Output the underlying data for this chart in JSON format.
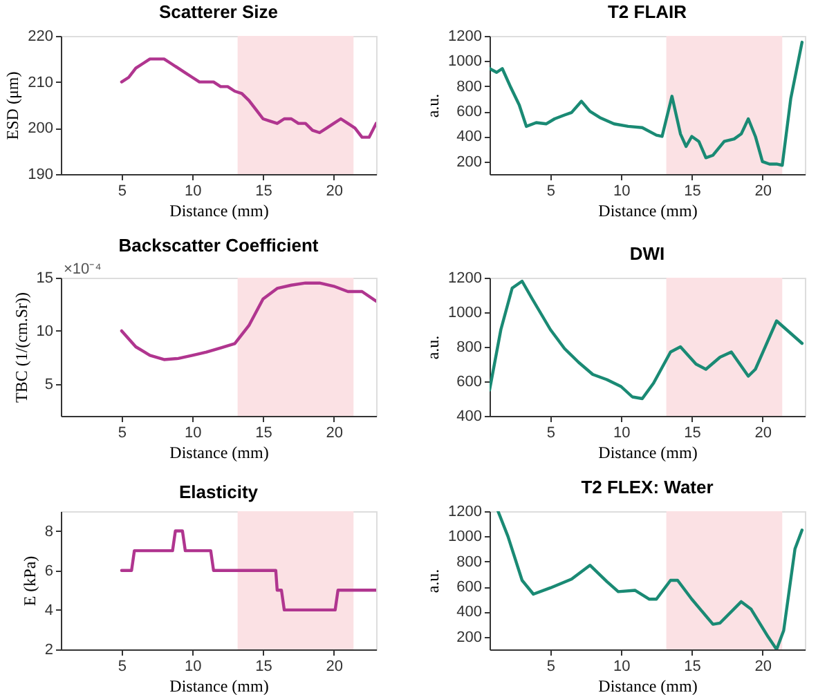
{
  "chart_data": [
    {
      "type": "line",
      "title": "Scatterer Size",
      "xlabel": "Distance (mm)",
      "ylabel": "ESD (μm)",
      "xlim": [
        0.7,
        23
      ],
      "xticks": [
        5,
        10,
        15,
        20
      ],
      "ylim": [
        190,
        220
      ],
      "yticks": [
        190,
        200,
        210,
        220
      ],
      "grid": false,
      "bands": [
        {
          "axis": "x",
          "from": 13.2,
          "to": 21.4,
          "color": "#fbe1e4"
        }
      ],
      "series": [
        {
          "color": "#b0358f",
          "x": [
            5,
            5.5,
            6,
            6.5,
            7,
            8,
            8.5,
            9,
            9.5,
            10,
            10.5,
            11.5,
            12,
            12.5,
            13,
            13.5,
            14,
            14.5,
            15,
            15.5,
            16,
            16.5,
            17,
            17.5,
            18,
            18.5,
            19,
            19.5,
            20,
            20.5,
            21,
            21.5,
            22,
            22.5,
            23
          ],
          "values": [
            210,
            211,
            213,
            214,
            215,
            215,
            214,
            213,
            212,
            211,
            210,
            210,
            209,
            209,
            208,
            207.5,
            206,
            204,
            202,
            201.5,
            201,
            202,
            202,
            201,
            201,
            199.5,
            199,
            200,
            201,
            202,
            201,
            200,
            198,
            198,
            201
          ]
        }
      ]
    },
    {
      "type": "line",
      "title": "T2 FLAIR",
      "xlabel": "Distance (mm)",
      "ylabel": "a.u.",
      "xlim": [
        0.7,
        23
      ],
      "xticks": [
        5,
        10,
        15,
        20
      ],
      "ylim": [
        100,
        1200
      ],
      "yticks": [
        200,
        400,
        600,
        800,
        1000,
        1200
      ],
      "grid": false,
      "bands": [
        {
          "axis": "x",
          "from": 13.2,
          "to": 21.4,
          "color": "#fbe1e4"
        }
      ],
      "series": [
        {
          "color": "#1a8a74",
          "x": [
            0.7,
            1.2,
            1.6,
            2.2,
            2.8,
            3.3,
            4,
            4.7,
            5.3,
            6,
            6.5,
            7.2,
            7.8,
            8.5,
            9.5,
            10.5,
            11.5,
            12.5,
            12.9,
            13.6,
            14.2,
            14.6,
            15,
            15.5,
            16,
            16.5,
            17.3,
            18,
            18.5,
            19,
            19.5,
            20,
            20.5,
            21,
            21.4,
            22,
            22.8
          ],
          "values": [
            940,
            910,
            940,
            790,
            650,
            480,
            510,
            500,
            540,
            570,
            590,
            680,
            600,
            550,
            500,
            480,
            470,
            410,
            400,
            720,
            420,
            320,
            400,
            360,
            230,
            250,
            360,
            380,
            420,
            540,
            400,
            200,
            180,
            180,
            170,
            700,
            1150
          ]
        }
      ]
    },
    {
      "type": "line",
      "title": "Backscatter Coefficient",
      "xlabel": "Distance (mm)",
      "ylabel": "TBC (1/(cm.Sr))",
      "annotations": [
        "×10⁻⁴"
      ],
      "xlim": [
        0.7,
        23
      ],
      "xticks": [
        5,
        10,
        15,
        20
      ],
      "ylim": [
        2,
        15
      ],
      "yticks": [
        5,
        10,
        15
      ],
      "grid": false,
      "bands": [
        {
          "axis": "x",
          "from": 13.2,
          "to": 21.4,
          "color": "#fbe1e4"
        }
      ],
      "series": [
        {
          "color": "#b0358f",
          "x": [
            5,
            6,
            7,
            8,
            9,
            10,
            11,
            12,
            13,
            14,
            15,
            16,
            17,
            18,
            19,
            20,
            21,
            22,
            23
          ],
          "values": [
            10,
            8.5,
            7.7,
            7.3,
            7.4,
            7.7,
            8,
            8.4,
            8.8,
            10.5,
            13,
            14,
            14.3,
            14.5,
            14.5,
            14.2,
            13.7,
            13.7,
            12.8
          ]
        }
      ]
    },
    {
      "type": "line",
      "title": "DWI",
      "xlabel": "Distance (mm)",
      "ylabel": "a.u.",
      "xlim": [
        0.7,
        23
      ],
      "xticks": [
        5,
        10,
        15,
        20
      ],
      "ylim": [
        400,
        1200
      ],
      "yticks": [
        400,
        600,
        800,
        1000,
        1200
      ],
      "grid": false,
      "bands": [
        {
          "axis": "x",
          "from": 13.2,
          "to": 21.4,
          "color": "#fbe1e4"
        }
      ],
      "series": [
        {
          "color": "#1a8a74",
          "x": [
            0.7,
            1.5,
            2.3,
            3,
            3.7,
            5,
            6,
            7,
            8,
            9,
            10,
            10.8,
            11.5,
            12.3,
            13.5,
            14.2,
            15.3,
            16,
            17,
            17.8,
            19,
            19.5,
            21,
            22.8
          ],
          "values": [
            550,
            900,
            1140,
            1180,
            1080,
            900,
            790,
            710,
            640,
            610,
            570,
            510,
            500,
            590,
            770,
            800,
            700,
            670,
            740,
            770,
            630,
            670,
            950,
            820
          ]
        }
      ]
    },
    {
      "type": "line",
      "title": "Elasticity",
      "xlabel": "Distance (mm)",
      "ylabel": "E (kPa)",
      "xlim": [
        0.7,
        23
      ],
      "xticks": [
        5,
        10,
        15,
        20
      ],
      "ylim": [
        2,
        9
      ],
      "yticks": [
        2,
        4,
        6,
        8
      ],
      "grid": false,
      "bands": [
        {
          "axis": "x",
          "from": 13.2,
          "to": 21.4,
          "color": "#fbe1e4"
        }
      ],
      "series": [
        {
          "color": "#b0358f",
          "x": [
            5,
            5.7,
            5.9,
            8.6,
            8.8,
            9.3,
            9.5,
            11.3,
            11.5,
            15.9,
            16,
            16.3,
            16.5,
            20.1,
            20.3,
            23
          ],
          "values": [
            6,
            6,
            7,
            7,
            8,
            8,
            7,
            7,
            6,
            6,
            5,
            5,
            4,
            4,
            5,
            5
          ]
        }
      ]
    },
    {
      "type": "line",
      "title": "T2 FLEX: Water",
      "xlabel": "Distance (mm)",
      "ylabel": "a.u.",
      "xlim": [
        0.7,
        23
      ],
      "xticks": [
        5,
        10,
        15,
        20
      ],
      "ylim": [
        100,
        1200
      ],
      "yticks": [
        200,
        400,
        600,
        800,
        1000,
        1200
      ],
      "grid": false,
      "bands": [
        {
          "axis": "x",
          "from": 13.2,
          "to": 21.4,
          "color": "#fbe1e4"
        }
      ],
      "series": [
        {
          "color": "#1a8a74",
          "x": [
            1.3,
            2,
            3,
            3.8,
            5,
            6.5,
            7.8,
            9,
            9.8,
            11,
            12,
            12.5,
            13.5,
            14,
            15,
            16.5,
            17,
            18.5,
            19.2,
            20.4,
            21,
            21.5,
            22.3,
            22.8
          ],
          "values": [
            1200,
            1000,
            650,
            540,
            590,
            660,
            770,
            640,
            560,
            570,
            500,
            500,
            650,
            650,
            500,
            300,
            310,
            480,
            420,
            200,
            100,
            250,
            900,
            1050
          ]
        }
      ]
    }
  ]
}
